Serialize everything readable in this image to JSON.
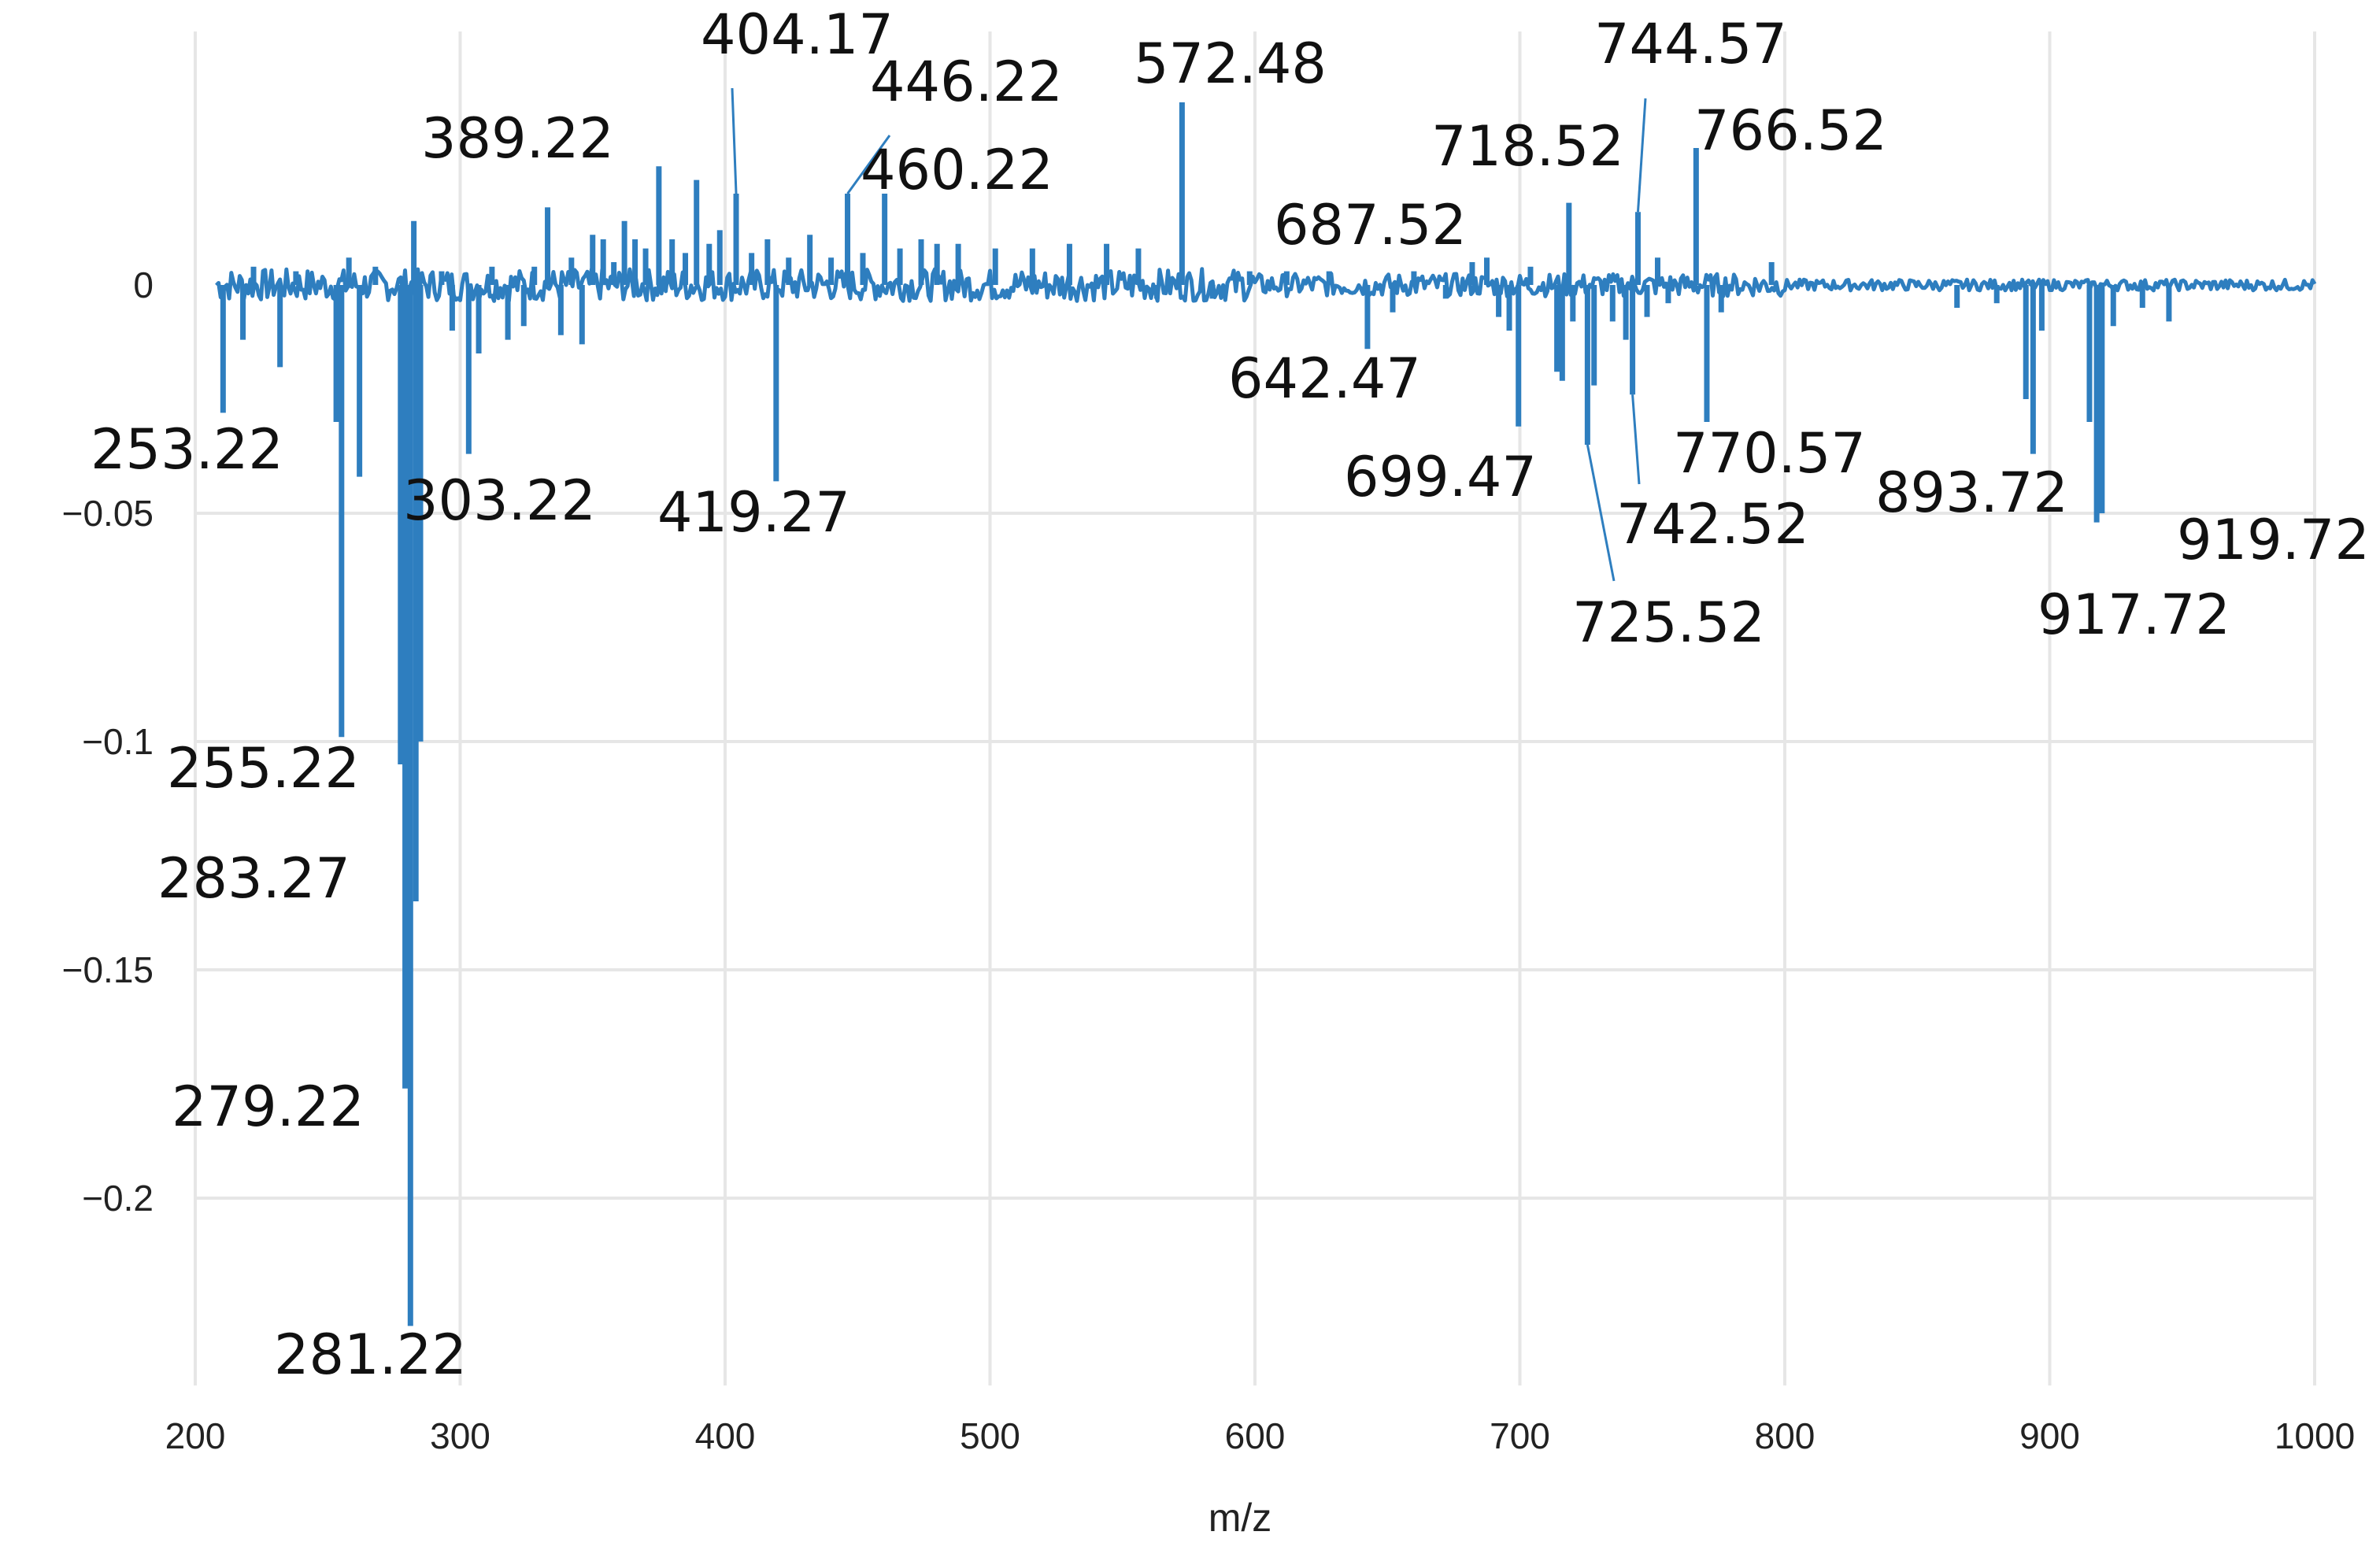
{
  "chart_data": {
    "type": "line",
    "title": "",
    "xlabel": "m/z",
    "ylabel": "",
    "xlim": [
      200,
      1000
    ],
    "ylim": [
      -0.25,
      0.04
    ],
    "grid": true,
    "x_ticks": [
      "200",
      "300",
      "400",
      "500",
      "600",
      "700",
      "800",
      "900",
      "1000"
    ],
    "y_ticks": [
      {
        "value": 0,
        "label": "0"
      },
      {
        "value": -0.05,
        "label": "−0.05"
      },
      {
        "value": -0.1,
        "label": "−0.1"
      },
      {
        "value": -0.15,
        "label": "−0.15"
      },
      {
        "value": -0.2,
        "label": "−0.2"
      }
    ],
    "series_color": "#2e7ebf",
    "peaks": [
      {
        "mz": 210.5,
        "y": -0.028
      },
      {
        "mz": 218,
        "y": -0.012
      },
      {
        "mz": 222,
        "y": 0.004
      },
      {
        "mz": 232,
        "y": -0.018
      },
      {
        "mz": 238,
        "y": 0.003
      },
      {
        "mz": 253.22,
        "y": -0.03
      },
      {
        "mz": 255.22,
        "y": -0.099
      },
      {
        "mz": 258,
        "y": 0.006
      },
      {
        "mz": 262,
        "y": -0.042
      },
      {
        "mz": 268,
        "y": 0.004
      },
      {
        "mz": 277.5,
        "y": -0.105
      },
      {
        "mz": 279.22,
        "y": -0.176
      },
      {
        "mz": 281.22,
        "y": -0.228
      },
      {
        "mz": 282.5,
        "y": 0.014
      },
      {
        "mz": 283.27,
        "y": -0.135
      },
      {
        "mz": 285,
        "y": -0.1
      },
      {
        "mz": 293,
        "y": 0.003
      },
      {
        "mz": 297,
        "y": -0.01
      },
      {
        "mz": 303.22,
        "y": -0.037
      },
      {
        "mz": 307,
        "y": -0.015
      },
      {
        "mz": 312,
        "y": 0.004
      },
      {
        "mz": 318,
        "y": -0.012
      },
      {
        "mz": 324,
        "y": -0.009
      },
      {
        "mz": 328,
        "y": 0.004
      },
      {
        "mz": 333,
        "y": 0.017
      },
      {
        "mz": 338,
        "y": -0.011
      },
      {
        "mz": 342,
        "y": 0.006
      },
      {
        "mz": 346,
        "y": -0.013
      },
      {
        "mz": 350,
        "y": 0.011
      },
      {
        "mz": 354,
        "y": 0.01
      },
      {
        "mz": 358,
        "y": 0.005
      },
      {
        "mz": 362,
        "y": 0.014
      },
      {
        "mz": 366,
        "y": 0.01
      },
      {
        "mz": 370,
        "y": 0.008
      },
      {
        "mz": 375,
        "y": 0.026
      },
      {
        "mz": 380,
        "y": 0.01
      },
      {
        "mz": 385,
        "y": 0.007
      },
      {
        "mz": 389.22,
        "y": 0.023
      },
      {
        "mz": 394,
        "y": 0.009
      },
      {
        "mz": 398,
        "y": 0.012
      },
      {
        "mz": 404.17,
        "y": 0.02
      },
      {
        "mz": 410,
        "y": 0.007
      },
      {
        "mz": 416,
        "y": 0.01
      },
      {
        "mz": 419.27,
        "y": -0.043
      },
      {
        "mz": 424,
        "y": 0.006
      },
      {
        "mz": 432,
        "y": 0.011
      },
      {
        "mz": 440,
        "y": 0.006
      },
      {
        "mz": 446.22,
        "y": 0.02
      },
      {
        "mz": 452,
        "y": 0.007
      },
      {
        "mz": 460.22,
        "y": 0.02
      },
      {
        "mz": 466,
        "y": 0.008
      },
      {
        "mz": 474,
        "y": 0.01
      },
      {
        "mz": 480,
        "y": 0.009
      },
      {
        "mz": 488,
        "y": 0.009
      },
      {
        "mz": 502,
        "y": 0.008
      },
      {
        "mz": 516,
        "y": 0.008
      },
      {
        "mz": 530,
        "y": 0.009
      },
      {
        "mz": 544,
        "y": 0.009
      },
      {
        "mz": 556,
        "y": 0.008
      },
      {
        "mz": 563,
        "y": -0.003
      },
      {
        "mz": 572.48,
        "y": 0.04
      },
      {
        "mz": 584,
        "y": -0.003
      },
      {
        "mz": 598,
        "y": 0.003
      },
      {
        "mz": 612,
        "y": 0.003
      },
      {
        "mz": 628,
        "y": 0.003
      },
      {
        "mz": 642.47,
        "y": -0.014
      },
      {
        "mz": 652,
        "y": -0.006
      },
      {
        "mz": 660,
        "y": 0.003
      },
      {
        "mz": 672,
        "y": -0.003
      },
      {
        "mz": 682,
        "y": 0.005
      },
      {
        "mz": 687.52,
        "y": 0.006
      },
      {
        "mz": 692,
        "y": -0.007
      },
      {
        "mz": 696,
        "y": -0.01
      },
      {
        "mz": 699.47,
        "y": -0.031
      },
      {
        "mz": 704,
        "y": 0.004
      },
      {
        "mz": 714,
        "y": -0.019
      },
      {
        "mz": 716,
        "y": -0.021
      },
      {
        "mz": 718.52,
        "y": 0.018
      },
      {
        "mz": 720,
        "y": -0.008
      },
      {
        "mz": 725.52,
        "y": -0.035
      },
      {
        "mz": 728,
        "y": -0.022
      },
      {
        "mz": 735,
        "y": -0.008
      },
      {
        "mz": 740,
        "y": -0.012
      },
      {
        "mz": 742.52,
        "y": -0.024
      },
      {
        "mz": 744.57,
        "y": 0.016
      },
      {
        "mz": 748,
        "y": -0.007
      },
      {
        "mz": 752,
        "y": 0.006
      },
      {
        "mz": 756,
        "y": -0.004
      },
      {
        "mz": 766.52,
        "y": 0.03
      },
      {
        "mz": 770.57,
        "y": -0.03
      },
      {
        "mz": 776,
        "y": -0.006
      },
      {
        "mz": 795,
        "y": 0.005
      },
      {
        "mz": 865,
        "y": -0.005
      },
      {
        "mz": 880,
        "y": -0.004
      },
      {
        "mz": 891,
        "y": -0.025
      },
      {
        "mz": 893.72,
        "y": -0.037
      },
      {
        "mz": 897,
        "y": -0.01
      },
      {
        "mz": 915,
        "y": -0.03
      },
      {
        "mz": 917.72,
        "y": -0.052
      },
      {
        "mz": 919.72,
        "y": -0.05
      },
      {
        "mz": 924,
        "y": -0.009
      },
      {
        "mz": 935,
        "y": -0.005
      },
      {
        "mz": 945,
        "y": -0.008
      }
    ],
    "annotations": [
      {
        "text": "253.22",
        "mz": 253.22
      },
      {
        "text": "255.22",
        "mz": 255.22
      },
      {
        "text": "283.27",
        "mz": 283.27
      },
      {
        "text": "279.22",
        "mz": 279.22
      },
      {
        "text": "281.22",
        "mz": 281.22
      },
      {
        "text": "303.22",
        "mz": 303.22
      },
      {
        "text": "389.22",
        "mz": 389.22
      },
      {
        "text": "404.17",
        "mz": 404.17
      },
      {
        "text": "446.22",
        "mz": 446.22
      },
      {
        "text": "460.22",
        "mz": 460.22
      },
      {
        "text": "419.27",
        "mz": 419.27
      },
      {
        "text": "572.48",
        "mz": 572.48
      },
      {
        "text": "687.52",
        "mz": 687.52
      },
      {
        "text": "642.47",
        "mz": 642.47
      },
      {
        "text": "699.47",
        "mz": 699.47
      },
      {
        "text": "718.52",
        "mz": 718.52
      },
      {
        "text": "744.57",
        "mz": 744.57
      },
      {
        "text": "766.52",
        "mz": 766.52
      },
      {
        "text": "770.57",
        "mz": 770.57
      },
      {
        "text": "742.52",
        "mz": 742.52
      },
      {
        "text": "725.52",
        "mz": 725.52
      },
      {
        "text": "893.72",
        "mz": 893.72
      },
      {
        "text": "919.72",
        "mz": 919.72
      },
      {
        "text": "917.72",
        "mz": 917.72
      }
    ]
  }
}
